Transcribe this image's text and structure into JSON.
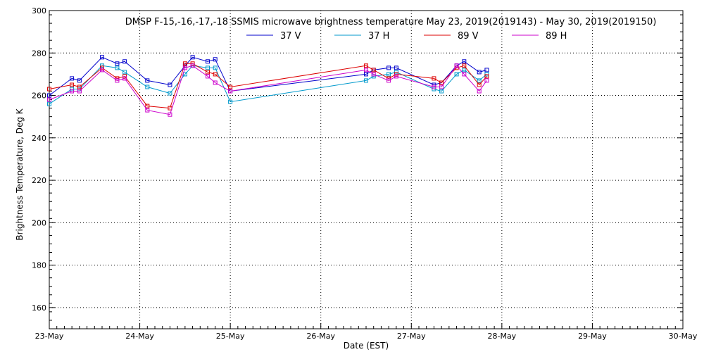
{
  "chart_data": {
    "type": "line",
    "title": "DMSP F-15,-16,-17,-18 SSMIS microwave brightness temperature May 23, 2019(2019143) - May 30, 2019(2019150)",
    "xlabel": "Date (EST)",
    "ylabel": "Brightness Temperature, Deg K",
    "xlim": [
      "2019-05-23",
      "2019-05-30"
    ],
    "ylim": [
      150,
      300
    ],
    "x_ticks": [
      "23-May",
      "24-May",
      "25-May",
      "26-May",
      "27-May",
      "28-May",
      "29-May",
      "30-May"
    ],
    "y_ticks": [
      160,
      180,
      200,
      220,
      240,
      260,
      280,
      300
    ],
    "grid": true,
    "legend_position": "top-center",
    "x": [
      "2019-05-23 00:00",
      "2019-05-23 06:00",
      "2019-05-23 08:00",
      "2019-05-23 14:00",
      "2019-05-23 18:00",
      "2019-05-23 20:00",
      "2019-05-24 02:00",
      "2019-05-24 08:00",
      "2019-05-24 12:00",
      "2019-05-24 14:00",
      "2019-05-24 18:00",
      "2019-05-24 20:00",
      "2019-05-25 00:00",
      "2019-05-26 12:00",
      "2019-05-26 14:00",
      "2019-05-26 18:00",
      "2019-05-26 20:00",
      "2019-05-27 06:00",
      "2019-05-27 08:00",
      "2019-05-27 12:00",
      "2019-05-27 14:00",
      "2019-05-27 18:00",
      "2019-05-27 20:00"
    ],
    "series": [
      {
        "name": "37 V",
        "color": "#0000cc",
        "values": [
          260,
          268,
          267,
          278,
          275,
          276,
          267,
          265,
          274,
          278,
          276,
          277,
          262,
          270,
          272,
          273,
          273,
          265,
          266,
          274,
          276,
          271,
          272
        ]
      },
      {
        "name": "37 H",
        "color": "#0099cc",
        "values": [
          256,
          263,
          263,
          274,
          273,
          271,
          264,
          261,
          270,
          274,
          273,
          273,
          257,
          267,
          269,
          270,
          271,
          263,
          262,
          270,
          272,
          267,
          270
        ]
      },
      {
        "name": "89 V",
        "color": "#dd0000",
        "values": [
          263,
          265,
          264,
          273,
          268,
          269,
          255,
          254,
          275,
          275,
          271,
          270,
          264,
          274,
          272,
          268,
          270,
          268,
          266,
          273,
          274,
          265,
          269
        ]
      },
      {
        "name": "89 H",
        "color": "#cc00cc",
        "values": [
          258,
          262,
          262,
          272,
          267,
          268,
          253,
          251,
          273,
          274,
          269,
          266,
          262,
          272,
          270,
          267,
          269,
          264,
          264,
          274,
          270,
          262,
          267
        ]
      }
    ]
  }
}
